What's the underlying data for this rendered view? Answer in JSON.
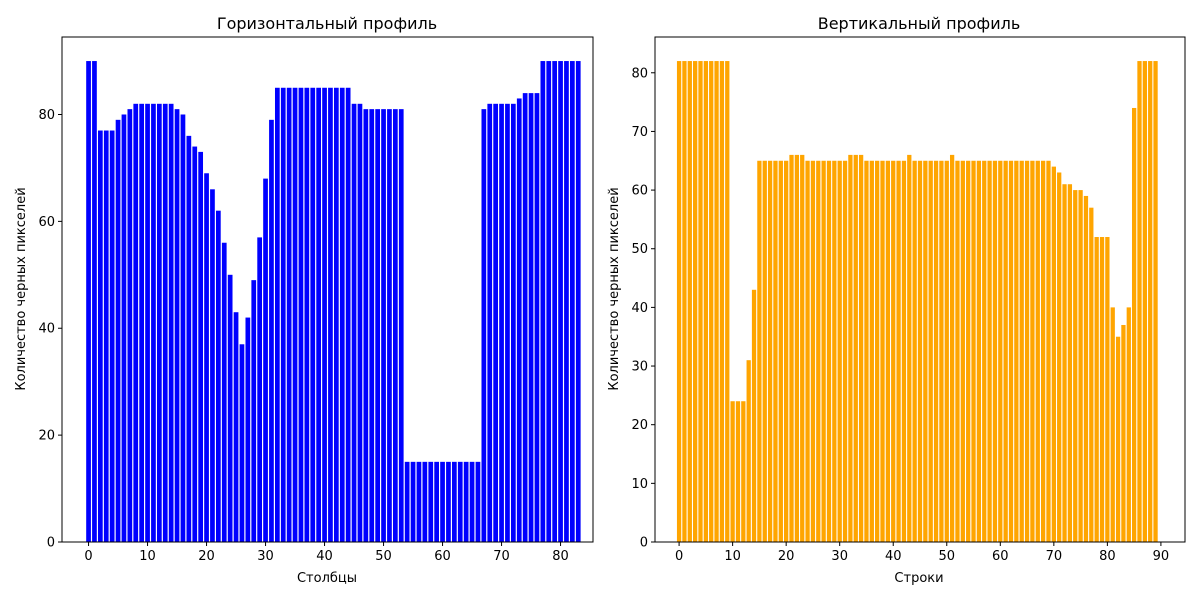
{
  "chart_data": [
    {
      "type": "bar",
      "title": "Горизонтальный профиль",
      "xlabel": "Столбцы",
      "ylabel": "Количество черных пикселей",
      "color": "#0000ff",
      "xlim": [
        -4.5,
        85.5
      ],
      "ylim": [
        0,
        94.5
      ],
      "xticks": [
        0,
        10,
        20,
        30,
        40,
        50,
        60,
        70,
        80
      ],
      "yticks": [
        0,
        20,
        40,
        60,
        80
      ],
      "x_start": 0,
      "values": [
        90,
        90,
        77,
        77,
        77,
        79,
        80,
        81,
        82,
        82,
        82,
        82,
        82,
        82,
        82,
        81,
        80,
        76,
        74,
        73,
        69,
        66,
        62,
        56,
        50,
        43,
        37,
        42,
        49,
        57,
        68,
        79,
        85,
        85,
        85,
        85,
        85,
        85,
        85,
        85,
        85,
        85,
        85,
        85,
        85,
        82,
        82,
        81,
        81,
        81,
        81,
        81,
        81,
        81,
        15,
        15,
        15,
        15,
        15,
        15,
        15,
        15,
        15,
        15,
        15,
        15,
        15,
        81,
        82,
        82,
        82,
        82,
        82,
        83,
        84,
        84,
        84,
        90,
        90,
        90,
        90,
        90,
        90,
        90
      ]
    },
    {
      "type": "bar",
      "title": "Вертикальный профиль",
      "xlabel": "Строки",
      "ylabel": "Количество черных пикселей",
      "color": "#ffa500",
      "xlim": [
        -4.5,
        94.5
      ],
      "ylim": [
        0,
        86.1
      ],
      "xticks": [
        0,
        10,
        20,
        30,
        40,
        50,
        60,
        70,
        80,
        90
      ],
      "yticks": [
        0,
        10,
        20,
        30,
        40,
        50,
        60,
        70,
        80
      ],
      "x_start": 0,
      "values": [
        82,
        82,
        82,
        82,
        82,
        82,
        82,
        82,
        82,
        82,
        24,
        24,
        24,
        31,
        43,
        65,
        65,
        65,
        65,
        65,
        65,
        66,
        66,
        66,
        65,
        65,
        65,
        65,
        65,
        65,
        65,
        65,
        66,
        66,
        66,
        65,
        65,
        65,
        65,
        65,
        65,
        65,
        65,
        66,
        65,
        65,
        65,
        65,
        65,
        65,
        65,
        66,
        65,
        65,
        65,
        65,
        65,
        65,
        65,
        65,
        65,
        65,
        65,
        65,
        65,
        65,
        65,
        65,
        65,
        65,
        64,
        63,
        61,
        61,
        60,
        60,
        59,
        57,
        52,
        52,
        52,
        40,
        35,
        37,
        40,
        74,
        82,
        82,
        82,
        82
      ]
    }
  ]
}
